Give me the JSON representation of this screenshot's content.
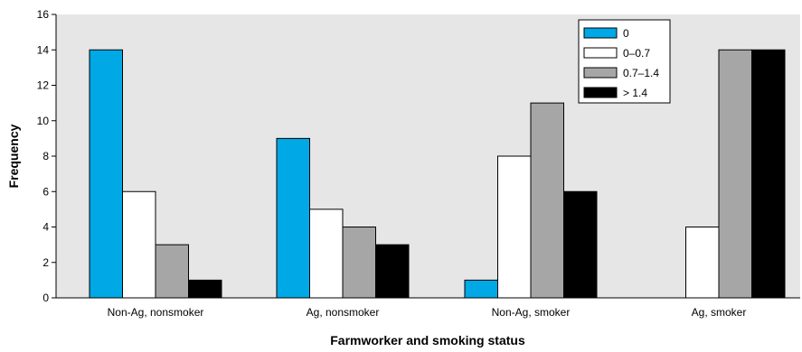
{
  "chart_data": {
    "type": "bar",
    "title": "",
    "xlabel": "Farmworker and smoking status",
    "ylabel": "Frequency",
    "ylim": [
      0,
      16
    ],
    "yticks": [
      0,
      2,
      4,
      6,
      8,
      10,
      12,
      14,
      16
    ],
    "categories": [
      "Non-Ag, nonsmoker",
      "Ag, nonsmoker",
      "Non-Ag, smoker",
      "Ag, smoker"
    ],
    "series": [
      {
        "name": "0",
        "color": "#00a8e6",
        "values": [
          14,
          9,
          1,
          0
        ]
      },
      {
        "name": "0–0.7",
        "color": "#ffffff",
        "values": [
          6,
          5,
          8,
          4
        ]
      },
      {
        "name": "0.7–1.4",
        "color": "#a6a6a6",
        "values": [
          3,
          4,
          11,
          14
        ]
      },
      {
        "name": "> 1.4",
        "color": "#000000",
        "values": [
          1,
          3,
          6,
          14
        ]
      }
    ],
    "grid": false,
    "legend_position": "top-right",
    "background": "#e6e6e6"
  }
}
